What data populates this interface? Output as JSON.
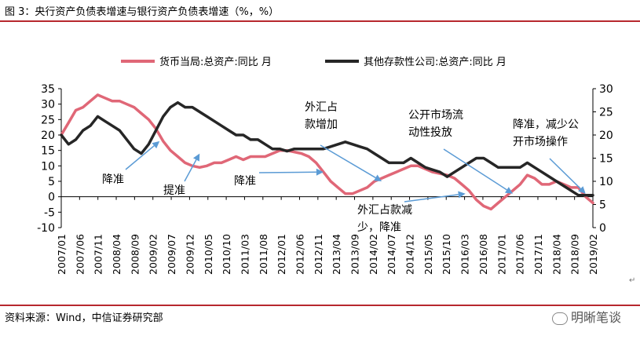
{
  "title": "图 3：央行资产负债表增速与银行资产负债表增速（%，%）",
  "source": "资料来源：Wind，中信证券研究部",
  "brand": "明晰笔谈",
  "return_mark": "↵",
  "colors": {
    "pboc": "#e06777",
    "banks": "#262626",
    "arrow": "#5b9bd5",
    "rule": "#b7282e"
  },
  "chart_data": {
    "type": "line",
    "x_ticks": [
      "2007/01",
      "2007/06",
      "2007/11",
      "2008/04",
      "2008/09",
      "2009/02",
      "2009/07",
      "2009/12",
      "2010/05",
      "2010/10",
      "2011/03",
      "2011/08",
      "2012/01",
      "2012/06",
      "2012/11",
      "2013/04",
      "2013/09",
      "2014/02",
      "2014/07",
      "2014/12",
      "2015/05",
      "2015/10",
      "2016/03",
      "2016/08",
      "2017/01",
      "2017/06",
      "2017/11",
      "2018/04",
      "2018/09",
      "2019/02"
    ],
    "x_range": [
      0,
      146
    ],
    "ylim_left": [
      -10,
      35
    ],
    "yticks_left": [
      35,
      30,
      25,
      20,
      15,
      10,
      5,
      0,
      -5,
      -10
    ],
    "ylim_right": [
      0,
      30
    ],
    "yticks_right": [
      30,
      25,
      20,
      15,
      10,
      5,
      0
    ],
    "series": [
      {
        "name": "货币当局:总资产:同比 月",
        "axis": "left",
        "color": "#e06777",
        "points": [
          [
            0,
            20
          ],
          [
            2,
            24
          ],
          [
            4,
            28
          ],
          [
            6,
            29
          ],
          [
            8,
            31
          ],
          [
            10,
            33
          ],
          [
            12,
            32
          ],
          [
            14,
            31
          ],
          [
            16,
            31
          ],
          [
            18,
            30
          ],
          [
            20,
            29
          ],
          [
            22,
            27
          ],
          [
            24,
            25
          ],
          [
            26,
            22
          ],
          [
            28,
            18
          ],
          [
            30,
            15
          ],
          [
            32,
            13
          ],
          [
            34,
            11
          ],
          [
            36,
            10
          ],
          [
            38,
            9.5
          ],
          [
            40,
            10
          ],
          [
            42,
            11
          ],
          [
            44,
            11
          ],
          [
            46,
            12
          ],
          [
            48,
            13
          ],
          [
            50,
            12
          ],
          [
            52,
            13
          ],
          [
            54,
            13
          ],
          [
            56,
            13
          ],
          [
            58,
            14
          ],
          [
            60,
            15
          ],
          [
            62,
            15
          ],
          [
            64,
            14.5
          ],
          [
            66,
            14
          ],
          [
            68,
            13
          ],
          [
            70,
            11
          ],
          [
            72,
            8
          ],
          [
            74,
            5
          ],
          [
            76,
            3
          ],
          [
            78,
            1
          ],
          [
            80,
            1
          ],
          [
            82,
            2
          ],
          [
            84,
            3
          ],
          [
            86,
            5
          ],
          [
            88,
            6
          ],
          [
            90,
            7
          ],
          [
            92,
            8
          ],
          [
            94,
            9
          ],
          [
            96,
            10
          ],
          [
            98,
            10
          ],
          [
            100,
            9
          ],
          [
            102,
            8
          ],
          [
            104,
            7.5
          ],
          [
            106,
            7
          ],
          [
            108,
            6
          ],
          [
            110,
            4
          ],
          [
            112,
            2
          ],
          [
            114,
            -1
          ],
          [
            116,
            -3
          ],
          [
            118,
            -4
          ],
          [
            120,
            -2
          ],
          [
            122,
            0
          ],
          [
            124,
            2
          ],
          [
            126,
            4
          ],
          [
            128,
            7
          ],
          [
            130,
            6
          ],
          [
            132,
            4
          ],
          [
            134,
            4
          ],
          [
            136,
            5
          ],
          [
            138,
            4
          ],
          [
            140,
            3
          ],
          [
            142,
            3
          ],
          [
            144,
            0
          ],
          [
            146,
            -2
          ]
        ]
      },
      {
        "name": "其他存款性公司:总资产:同比 月",
        "axis": "right",
        "color": "#262626",
        "points": [
          [
            0,
            20
          ],
          [
            2,
            18
          ],
          [
            4,
            19
          ],
          [
            6,
            21
          ],
          [
            8,
            22
          ],
          [
            10,
            24
          ],
          [
            12,
            23
          ],
          [
            14,
            22
          ],
          [
            16,
            21
          ],
          [
            18,
            19
          ],
          [
            20,
            17
          ],
          [
            22,
            16
          ],
          [
            24,
            18
          ],
          [
            26,
            21
          ],
          [
            28,
            24
          ],
          [
            30,
            26
          ],
          [
            32,
            27
          ],
          [
            34,
            26
          ],
          [
            36,
            26
          ],
          [
            38,
            25
          ],
          [
            40,
            24
          ],
          [
            42,
            23
          ],
          [
            44,
            22
          ],
          [
            46,
            21
          ],
          [
            48,
            20
          ],
          [
            50,
            20
          ],
          [
            52,
            19
          ],
          [
            54,
            19
          ],
          [
            56,
            18
          ],
          [
            58,
            17
          ],
          [
            60,
            17
          ],
          [
            62,
            16.5
          ],
          [
            64,
            17
          ],
          [
            66,
            17
          ],
          [
            68,
            17
          ],
          [
            70,
            17
          ],
          [
            72,
            17
          ],
          [
            74,
            17.5
          ],
          [
            76,
            18
          ],
          [
            78,
            18.5
          ],
          [
            80,
            18
          ],
          [
            82,
            17.5
          ],
          [
            84,
            17
          ],
          [
            86,
            16
          ],
          [
            88,
            15
          ],
          [
            90,
            14
          ],
          [
            92,
            14
          ],
          [
            94,
            14
          ],
          [
            96,
            15
          ],
          [
            98,
            14
          ],
          [
            100,
            13
          ],
          [
            102,
            12.5
          ],
          [
            104,
            12
          ],
          [
            106,
            11
          ],
          [
            108,
            12
          ],
          [
            110,
            13
          ],
          [
            112,
            14
          ],
          [
            114,
            15
          ],
          [
            116,
            15
          ],
          [
            118,
            14
          ],
          [
            120,
            13
          ],
          [
            122,
            13
          ],
          [
            124,
            13
          ],
          [
            126,
            13
          ],
          [
            128,
            14
          ],
          [
            130,
            13
          ],
          [
            132,
            12
          ],
          [
            134,
            11
          ],
          [
            136,
            10
          ],
          [
            138,
            9
          ],
          [
            140,
            8
          ],
          [
            142,
            7
          ],
          [
            144,
            7
          ],
          [
            146,
            7
          ]
        ]
      }
    ],
    "annotations": [
      {
        "text": [
          "降准"
        ],
        "target": [
          27,
          18
        ]
      },
      {
        "text": [
          "提准"
        ],
        "target": [
          38,
          14
        ]
      },
      {
        "text": [
          "降准"
        ],
        "target": [
          72,
          8
        ]
      },
      {
        "text": [
          "外汇占",
          "款增加"
        ],
        "target": [
          88,
          5
        ]
      },
      {
        "text": [
          "外汇占款减",
          "少，降准"
        ],
        "target": [
          111,
          1
        ]
      },
      {
        "text": [
          "公开市场流",
          "动性投放"
        ],
        "target": [
          124,
          1
        ]
      },
      {
        "text": [
          "降准，减少公",
          "开市场操作"
        ],
        "target": [
          144,
          1
        ]
      }
    ]
  }
}
